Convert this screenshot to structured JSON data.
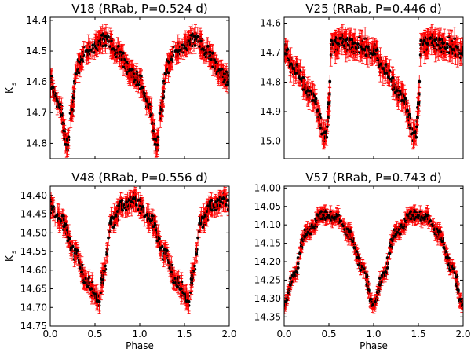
{
  "chart_data": [
    {
      "type": "scatter",
      "title": "V18 (RRab, P=0.524 d)",
      "xlabel": "",
      "ylabel": "K",
      "ylabel_sub": "s",
      "xlim": [
        0.0,
        2.0
      ],
      "ylim": [
        14.85,
        14.39
      ],
      "y_inverted": true,
      "yticks": [
        14.4,
        14.5,
        14.6,
        14.7,
        14.8
      ],
      "ytick_labels": [
        "14.4",
        "14.5",
        "14.6",
        "14.7",
        "14.8"
      ],
      "xticks": [
        0.0,
        0.5,
        1.0,
        1.5,
        2.0
      ],
      "xtick_labels": [],
      "series": [
        {
          "name": "Ks",
          "color": "#000000",
          "errorbar_color": "#ff0000",
          "error": 0.025
        }
      ],
      "curve_knots": [
        [
          0.0,
          14.6
        ],
        [
          0.09,
          14.67
        ],
        [
          0.19,
          14.8
        ],
        [
          0.24,
          14.69
        ],
        [
          0.3,
          14.55
        ],
        [
          0.42,
          14.5
        ],
        [
          0.62,
          14.46
        ],
        [
          0.75,
          14.5
        ],
        [
          0.88,
          14.56
        ],
        [
          1.0,
          14.6
        ]
      ],
      "point_count": 260
    },
    {
      "type": "scatter",
      "title": "V25 (RRab, P=0.446 d)",
      "xlabel": "",
      "ylabel": "",
      "xlim": [
        0.0,
        2.0
      ],
      "ylim": [
        15.06,
        14.58
      ],
      "y_inverted": true,
      "yticks": [
        14.6,
        14.7,
        14.8,
        14.9,
        15.0
      ],
      "ytick_labels": [
        "14.6",
        "14.7",
        "14.8",
        "14.9",
        "15.0"
      ],
      "xticks": [
        0.0,
        0.5,
        1.0,
        1.5,
        2.0
      ],
      "xtick_labels": [],
      "series": [
        {
          "name": "Ks",
          "color": "#000000",
          "errorbar_color": "#ff0000",
          "error": 0.03
        }
      ],
      "curve_knots": [
        [
          0.0,
          14.7
        ],
        [
          0.12,
          14.76
        ],
        [
          0.3,
          14.84
        ],
        [
          0.47,
          14.99
        ],
        [
          0.5,
          14.88
        ],
        [
          0.53,
          14.68
        ],
        [
          0.66,
          14.66
        ],
        [
          0.85,
          14.68
        ],
        [
          1.0,
          14.7
        ]
      ],
      "point_count": 260
    },
    {
      "type": "scatter",
      "title": "V48 (RRab, P=0.556 d)",
      "xlabel": "Phase",
      "ylabel": "K",
      "ylabel_sub": "s",
      "xlim": [
        0.0,
        2.0
      ],
      "ylim": [
        14.75,
        14.375
      ],
      "y_inverted": true,
      "yticks": [
        14.4,
        14.45,
        14.5,
        14.55,
        14.6,
        14.65,
        14.7,
        14.75
      ],
      "ytick_labels": [
        "14.40",
        "14.45",
        "14.50",
        "14.55",
        "14.60",
        "14.65",
        "14.70",
        "14.75"
      ],
      "xticks": [
        0.0,
        0.5,
        1.0,
        1.5,
        2.0
      ],
      "xtick_labels": [
        "0.0",
        "0.5",
        "1.0",
        "1.5",
        "2.0"
      ],
      "series": [
        {
          "name": "Ks",
          "color": "#000000",
          "errorbar_color": "#ff0000",
          "error": 0.02
        }
      ],
      "curve_knots": [
        [
          0.0,
          14.43
        ],
        [
          0.14,
          14.47
        ],
        [
          0.27,
          14.55
        ],
        [
          0.42,
          14.64
        ],
        [
          0.55,
          14.68
        ],
        [
          0.6,
          14.6
        ],
        [
          0.68,
          14.47
        ],
        [
          0.8,
          14.43
        ],
        [
          0.96,
          14.41
        ],
        [
          1.0,
          14.43
        ]
      ],
      "point_count": 260
    },
    {
      "type": "scatter",
      "title": "V57 (RRab, P=0.743 d)",
      "xlabel": "Phase",
      "ylabel": "",
      "xlim": [
        0.0,
        2.0
      ],
      "ylim": [
        14.375,
        13.995
      ],
      "y_inverted": true,
      "yticks": [
        14.0,
        14.05,
        14.1,
        14.15,
        14.2,
        14.25,
        14.3,
        14.35
      ],
      "ytick_labels": [
        "14.00",
        "14.05",
        "14.10",
        "14.15",
        "14.20",
        "14.25",
        "14.30",
        "14.35"
      ],
      "xticks": [
        0.0,
        0.5,
        1.0,
        1.5,
        2.0
      ],
      "xtick_labels": [
        "0.0",
        "0.5",
        "1.0",
        "1.5",
        "2.0"
      ],
      "series": [
        {
          "name": "Ks",
          "color": "#000000",
          "errorbar_color": "#ff0000",
          "error": 0.015
        }
      ],
      "curve_knots": [
        [
          0.0,
          14.32
        ],
        [
          0.1,
          14.24
        ],
        [
          0.25,
          14.12
        ],
        [
          0.45,
          14.07
        ],
        [
          0.58,
          14.08
        ],
        [
          0.72,
          14.12
        ],
        [
          0.88,
          14.22
        ],
        [
          1.0,
          14.32
        ]
      ],
      "point_count": 260
    }
  ]
}
